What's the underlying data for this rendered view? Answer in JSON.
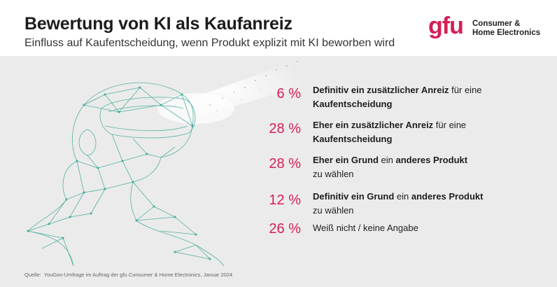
{
  "header": {
    "title": "Bewertung von KI als Kaufanreiz",
    "subtitle": "Einfluss auf Kaufentscheidung, wenn Produkt explizit mit KI beworben wird"
  },
  "logo": {
    "mark": "gfu",
    "line1": "Consumer &",
    "line2": "Home Electronics"
  },
  "colors": {
    "accent": "#d61f55",
    "panel": "#ebebeb",
    "figure_line": "#3aa896"
  },
  "chart_data": {
    "type": "table",
    "title": "Bewertung von KI als Kaufanreiz",
    "subtitle": "Einfluss auf Kaufentscheidung, wenn Produkt explizit mit KI beworben wird",
    "unit": "%",
    "rows": [
      {
        "value": 6,
        "value_label": "6 %",
        "b1": "Definitiv ein zusätzlicher Anreiz",
        "t1": " für eine",
        "b2": "Kaufentscheidung",
        "t2": ""
      },
      {
        "value": 28,
        "value_label": "28 %",
        "b1": "Eher ein zusätzlicher Anreiz",
        "t1": " für eine",
        "b2": "Kaufentscheidung",
        "t2": ""
      },
      {
        "value": 28,
        "value_label": "28 %",
        "b1": "Eher ein Grund",
        "t1": " ein ",
        "b1b": "anderes Produkt",
        "b2": "",
        "t2": "zu wählen"
      },
      {
        "value": 12,
        "value_label": "12 %",
        "b1": "Definitiv ein Grund",
        "t1": " ein ",
        "b1b": "anderes Produkt",
        "b2": "",
        "t2": "zu wählen"
      },
      {
        "value": 26,
        "value_label": "26 %",
        "b1": "",
        "t1": "Weiß nicht / keine Angabe",
        "b2": "",
        "t2": ""
      }
    ]
  },
  "source": {
    "label": "Quelle:",
    "text": "YouGov-Umfrage im Auftrag der gfu Consumer & Home Electronics, Januar 2024"
  }
}
